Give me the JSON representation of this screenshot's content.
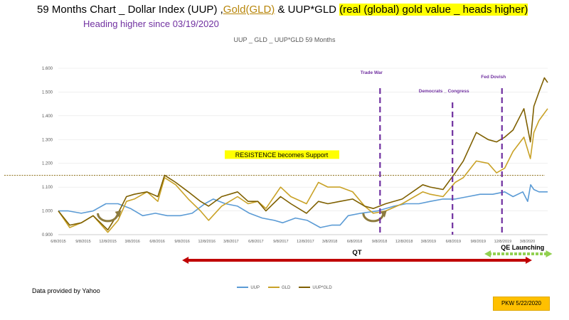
{
  "header": {
    "title_part1": "59 Months Chart _  Dollar Index (UUP) ,",
    "title_gold": "Gold(GLD)",
    "title_part2": " & UUP*GLD ",
    "title_highlight": "(real (global) gold value _ heads higher)",
    "subtitle": "Heading higher since 03/19/2020"
  },
  "chart_heading": "UUP _ GLD  _ UUP*GLD    59 Months",
  "footer": {
    "source": "Data provided by Yahoo",
    "badge": "PKW 5/22/2020"
  },
  "colors": {
    "uup": "#5b9bd5",
    "gld": "#c9a227",
    "product": "#7f6000",
    "qt_arrow": "#c00000",
    "qe_arrow": "#92d050",
    "annotation": "#7030a0",
    "support_line": "#806000",
    "highlight": "#ffff00"
  },
  "chart_data": {
    "type": "line",
    "ylim": [
      0.9,
      1.6
    ],
    "yticks": [
      "0.900",
      "1.000",
      "1.100",
      "1.200",
      "1.300",
      "1.400",
      "1.500",
      "1.600"
    ],
    "x_tick_labels": [
      "6/8/2015",
      "9/8/2015",
      "12/8/2015",
      "3/8/2016",
      "6/8/2016",
      "9/8/2016",
      "12/8/2016",
      "3/8/2017",
      "6/8/2017",
      "9/8/2017",
      "12/8/2017",
      "3/8/2018",
      "6/8/2018",
      "9/8/2018",
      "12/8/2018",
      "3/8/2019",
      "6/8/2019",
      "9/8/2019",
      "12/8/2019",
      "3/8/2020"
    ],
    "x_range": [
      "2015-06-08",
      "2020-05-22"
    ],
    "series": [
      {
        "name": "UUP",
        "key": "uup",
        "points": [
          [
            "2015-06-08",
            1.0
          ],
          [
            "2015-07-15",
            1.0
          ],
          [
            "2015-09-01",
            0.99
          ],
          [
            "2015-10-15",
            1.0
          ],
          [
            "2015-12-01",
            1.03
          ],
          [
            "2016-01-15",
            1.03
          ],
          [
            "2016-03-01",
            1.01
          ],
          [
            "2016-04-15",
            0.98
          ],
          [
            "2016-06-01",
            0.99
          ],
          [
            "2016-07-15",
            0.98
          ],
          [
            "2016-09-01",
            0.98
          ],
          [
            "2016-10-15",
            0.99
          ],
          [
            "2016-12-01",
            1.03
          ],
          [
            "2017-01-01",
            1.05
          ],
          [
            "2017-02-15",
            1.03
          ],
          [
            "2017-04-01",
            1.02
          ],
          [
            "2017-05-15",
            0.99
          ],
          [
            "2017-07-01",
            0.97
          ],
          [
            "2017-08-15",
            0.96
          ],
          [
            "2017-09-15",
            0.95
          ],
          [
            "2017-11-01",
            0.97
          ],
          [
            "2017-12-15",
            0.96
          ],
          [
            "2018-02-01",
            0.93
          ],
          [
            "2018-03-15",
            0.94
          ],
          [
            "2018-04-15",
            0.94
          ],
          [
            "2018-05-15",
            0.98
          ],
          [
            "2018-07-01",
            0.99
          ],
          [
            "2018-09-01",
            1.0
          ],
          [
            "2018-11-01",
            1.02
          ],
          [
            "2018-12-15",
            1.03
          ],
          [
            "2019-02-01",
            1.03
          ],
          [
            "2019-03-15",
            1.04
          ],
          [
            "2019-05-01",
            1.05
          ],
          [
            "2019-06-15",
            1.05
          ],
          [
            "2019-08-01",
            1.06
          ],
          [
            "2019-09-15",
            1.07
          ],
          [
            "2019-11-01",
            1.07
          ],
          [
            "2019-12-15",
            1.08
          ],
          [
            "2020-01-15",
            1.06
          ],
          [
            "2020-02-20",
            1.08
          ],
          [
            "2020-03-09",
            1.04
          ],
          [
            "2020-03-20",
            1.11
          ],
          [
            "2020-04-01",
            1.09
          ],
          [
            "2020-04-20",
            1.08
          ],
          [
            "2020-05-22",
            1.08
          ]
        ]
      },
      {
        "name": "GLD",
        "key": "gld",
        "points": [
          [
            "2015-06-08",
            1.0
          ],
          [
            "2015-07-20",
            0.93
          ],
          [
            "2015-09-01",
            0.95
          ],
          [
            "2015-10-15",
            0.98
          ],
          [
            "2015-12-08",
            0.91
          ],
          [
            "2016-01-15",
            0.96
          ],
          [
            "2016-02-15",
            1.04
          ],
          [
            "2016-03-15",
            1.05
          ],
          [
            "2016-05-01",
            1.08
          ],
          [
            "2016-06-10",
            1.04
          ],
          [
            "2016-07-05",
            1.14
          ],
          [
            "2016-08-15",
            1.11
          ],
          [
            "2016-10-01",
            1.05
          ],
          [
            "2016-11-15",
            1.0
          ],
          [
            "2016-12-15",
            0.96
          ],
          [
            "2017-02-01",
            1.02
          ],
          [
            "2017-04-01",
            1.06
          ],
          [
            "2017-05-10",
            1.03
          ],
          [
            "2017-06-15",
            1.04
          ],
          [
            "2017-07-15",
            1.01
          ],
          [
            "2017-09-07",
            1.1
          ],
          [
            "2017-10-15",
            1.06
          ],
          [
            "2017-12-12",
            1.03
          ],
          [
            "2018-01-25",
            1.12
          ],
          [
            "2018-03-01",
            1.1
          ],
          [
            "2018-04-15",
            1.1
          ],
          [
            "2018-06-01",
            1.08
          ],
          [
            "2018-07-15",
            1.02
          ],
          [
            "2018-08-16",
            0.99
          ],
          [
            "2018-10-01",
            1.0
          ],
          [
            "2018-12-01",
            1.03
          ],
          [
            "2019-02-15",
            1.08
          ],
          [
            "2019-03-15",
            1.07
          ],
          [
            "2019-05-01",
            1.06
          ],
          [
            "2019-06-15",
            1.12
          ],
          [
            "2019-07-15",
            1.14
          ],
          [
            "2019-09-01",
            1.21
          ],
          [
            "2019-10-15",
            1.2
          ],
          [
            "2019-11-15",
            1.16
          ],
          [
            "2019-12-15",
            1.18
          ],
          [
            "2020-01-15",
            1.25
          ],
          [
            "2020-02-24",
            1.31
          ],
          [
            "2020-03-19",
            1.22
          ],
          [
            "2020-04-01",
            1.33
          ],
          [
            "2020-04-20",
            1.38
          ],
          [
            "2020-05-22",
            1.43
          ]
        ]
      },
      {
        "name": "UUP*GLD",
        "key": "product",
        "points": [
          [
            "2015-06-08",
            1.0
          ],
          [
            "2015-07-20",
            0.94
          ],
          [
            "2015-09-01",
            0.95
          ],
          [
            "2015-10-15",
            0.98
          ],
          [
            "2015-12-08",
            0.92
          ],
          [
            "2016-01-15",
            0.99
          ],
          [
            "2016-02-15",
            1.06
          ],
          [
            "2016-03-15",
            1.07
          ],
          [
            "2016-05-01",
            1.08
          ],
          [
            "2016-06-10",
            1.06
          ],
          [
            "2016-07-05",
            1.15
          ],
          [
            "2016-08-15",
            1.12
          ],
          [
            "2016-10-01",
            1.08
          ],
          [
            "2016-11-15",
            1.04
          ],
          [
            "2016-12-15",
            1.02
          ],
          [
            "2017-02-01",
            1.06
          ],
          [
            "2017-04-01",
            1.08
          ],
          [
            "2017-05-10",
            1.04
          ],
          [
            "2017-06-15",
            1.04
          ],
          [
            "2017-07-15",
            1.0
          ],
          [
            "2017-09-07",
            1.06
          ],
          [
            "2017-10-15",
            1.03
          ],
          [
            "2017-12-12",
            0.99
          ],
          [
            "2018-01-25",
            1.04
          ],
          [
            "2018-03-01",
            1.03
          ],
          [
            "2018-04-15",
            1.04
          ],
          [
            "2018-06-01",
            1.05
          ],
          [
            "2018-07-15",
            1.02
          ],
          [
            "2018-08-16",
            1.01
          ],
          [
            "2018-10-01",
            1.03
          ],
          [
            "2018-12-01",
            1.05
          ],
          [
            "2019-02-15",
            1.11
          ],
          [
            "2019-03-15",
            1.1
          ],
          [
            "2019-05-01",
            1.09
          ],
          [
            "2019-06-15",
            1.16
          ],
          [
            "2019-07-15",
            1.21
          ],
          [
            "2019-09-01",
            1.33
          ],
          [
            "2019-10-15",
            1.3
          ],
          [
            "2019-11-15",
            1.29
          ],
          [
            "2019-12-15",
            1.31
          ],
          [
            "2020-01-15",
            1.34
          ],
          [
            "2020-02-24",
            1.43
          ],
          [
            "2020-03-19",
            1.29
          ],
          [
            "2020-04-01",
            1.44
          ],
          [
            "2020-04-20",
            1.5
          ],
          [
            "2020-05-10",
            1.56
          ],
          [
            "2020-05-22",
            1.54
          ]
        ]
      }
    ],
    "reference_line": {
      "y": 1.15,
      "label": "RESISTENCE becomes Support"
    },
    "vlines": [
      {
        "date": "2018-09-10",
        "label": "Trade War"
      },
      {
        "date": "2019-06-05",
        "label": "Democrats _ Congress"
      },
      {
        "date": "2019-12-05",
        "label": "Fed Dovish"
      }
    ],
    "ranges": [
      {
        "label": "QT",
        "start": "2016-09-08",
        "end": "2020-03-25",
        "key": "qt_arrow"
      },
      {
        "label": "QE Launching",
        "start": "2019-10-01",
        "end": "2020-06-08",
        "key": "qe_arrow"
      }
    ],
    "circled_lows": [
      "2015-12-08",
      "2018-08-16"
    ]
  }
}
